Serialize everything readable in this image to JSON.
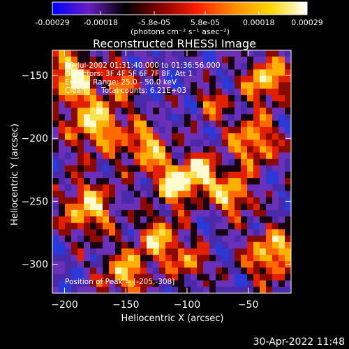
{
  "colorbar": {
    "tick_labels": [
      "-0.00029",
      "-0.00018",
      "-5.8e-05",
      "5.8e-05",
      "0.00018",
      "0.00029"
    ],
    "tick_values": [
      -0.00029,
      -0.00018,
      -5.8e-05,
      5.8e-05,
      0.00018,
      0.00029
    ],
    "range": [
      -0.00029,
      0.00029
    ],
    "units": "(photons cm⁻² s⁻¹ asec⁻²)",
    "colors": [
      "#0000ff",
      "#6a1fc2",
      "#000000",
      "#8b0000",
      "#ff2000",
      "#ff8c00",
      "#ffd700",
      "#ffffff"
    ]
  },
  "chart_data": {
    "type": "heatmap",
    "title": "Reconstructed RHESSI Image",
    "xlabel": "Heliocentric X (arcsec)",
    "ylabel": "Heliocentric Y (arcsec)",
    "xlim": [
      -210,
      -15
    ],
    "ylim": [
      -323,
      -130
    ],
    "x_ticks": [
      -200,
      -150,
      -100,
      -50
    ],
    "y_ticks": [
      -150,
      -200,
      -250,
      -300
    ],
    "x_tick_labels": [
      "−200",
      "−150",
      "−100",
      "−50"
    ],
    "y_tick_labels": [
      "−150",
      "−200",
      "−250",
      "−300"
    ],
    "annotations": {
      "time_range": "29-Jul-2002 01:31:40.000 to 01:36:56.000",
      "detectors": "Detectors: 3F 4F 5F 6F 7F 8F, Att 1",
      "energy": "Energy Range: 25.0 - 50.0 keV",
      "method": "Clean",
      "counts": "Total counts: 6.21E+03",
      "peak": "Position of Peak = [-205,-308]"
    },
    "peak_position": [
      -205,
      -308
    ]
  },
  "footer": {
    "timestamp": "30-Apr-2022 11:48"
  }
}
